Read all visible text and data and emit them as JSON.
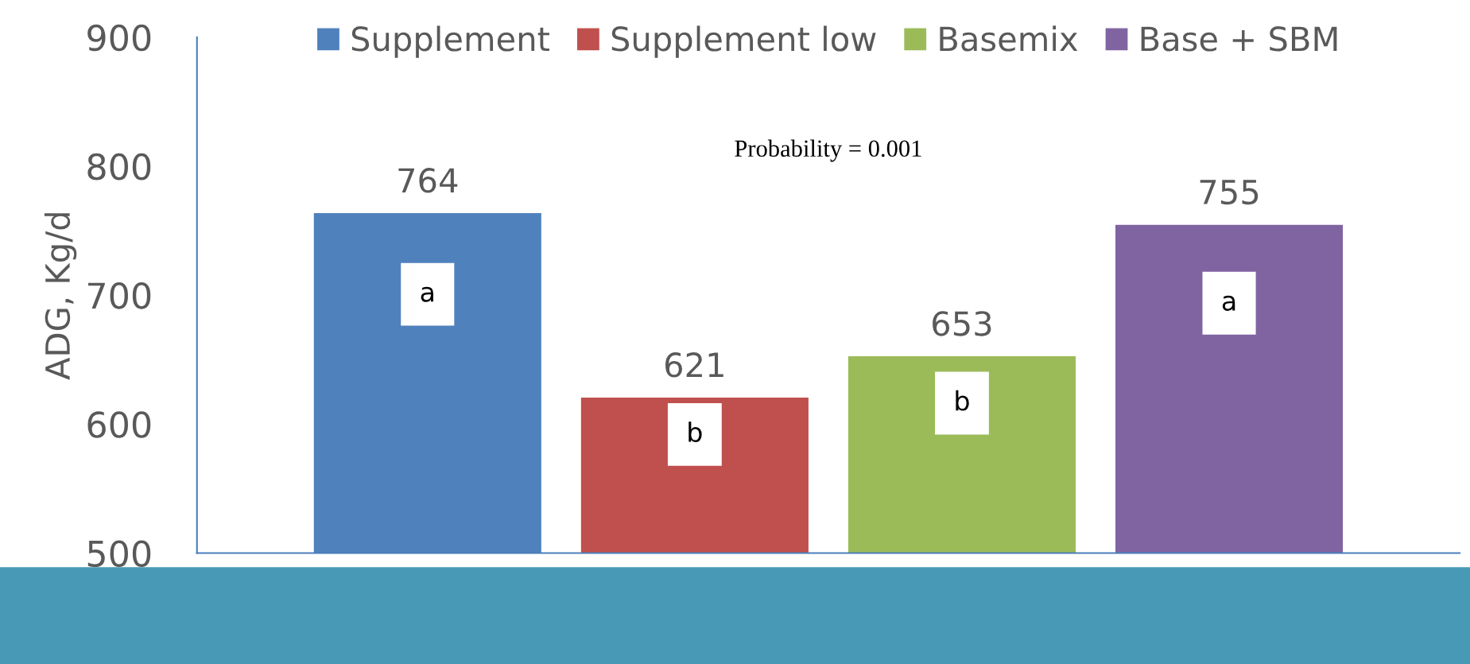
{
  "chart_data": {
    "type": "bar",
    "ylabel": "ADG, Kg/d",
    "categories": [
      null
    ],
    "series": [
      {
        "name": "Supplement",
        "color": "#4f81bd",
        "values": [
          764
        ]
      },
      {
        "name": "Supplement low",
        "color": "#c0504d",
        "values": [
          621
        ]
      },
      {
        "name": "Basemix",
        "color": "#9bbb59",
        "values": [
          653
        ]
      },
      {
        "name": "Base + SBM",
        "color": "#8064a2",
        "values": [
          755
        ]
      }
    ],
    "ylim": [
      500,
      900
    ],
    "yticks": [
      500,
      600,
      700,
      800,
      900
    ],
    "data_labels": true,
    "legend": "top",
    "grid": false,
    "annotations": [
      "a",
      "b",
      "b",
      "a",
      "Probability = 0.001"
    ]
  }
}
